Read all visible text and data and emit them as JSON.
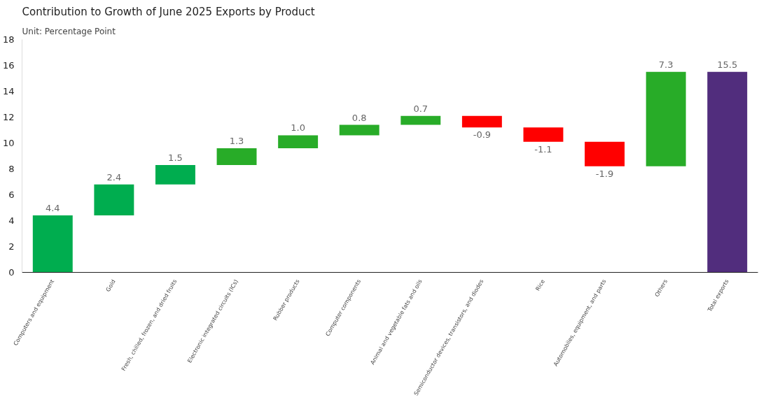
{
  "chart_data": {
    "type": "bar",
    "title": "Contribution to Growth of June 2025 Exports by Product",
    "subtitle": "Unit: Percentage Point",
    "categories": [
      "Computers and equipment",
      "Gold",
      "Fresh, chilled, frozen, and dried fruits",
      "Electronic integrated circuits (ICs)",
      "Rubber products",
      "Computer components",
      "Animal and vegetable fats and oils",
      "Semiconductor devices, transistors, and diodes",
      "Rice",
      "Automobiles, equipment, and parts",
      "Others",
      "Total exports"
    ],
    "values": [
      4.4,
      2.4,
      1.5,
      1.3,
      1.0,
      0.8,
      0.7,
      -0.9,
      -1.1,
      -1.9,
      7.3,
      15.5
    ],
    "base": [
      0,
      4.4,
      6.8,
      8.3,
      9.6,
      10.6,
      11.4,
      12.1,
      11.2,
      10.1,
      8.2,
      0
    ],
    "colors": [
      "#00ad4f",
      "#00ad4f",
      "#00ad4f",
      "#28ac28",
      "#28ac28",
      "#28ac28",
      "#28ac28",
      "#ff0000",
      "#ff0000",
      "#ff0000",
      "#28ac28",
      "#512d7d"
    ],
    "value_labels": [
      "4.4",
      "2.4",
      "1.5",
      "1.3",
      "1.0",
      "0.8",
      "0.7",
      "-0.9",
      "-1.1",
      "-1.9",
      "7.3",
      "15.5"
    ],
    "ylim": [
      0,
      18
    ],
    "yticks": [
      0,
      2,
      4,
      6,
      8,
      10,
      12,
      14,
      16,
      18
    ],
    "grid": false
  }
}
